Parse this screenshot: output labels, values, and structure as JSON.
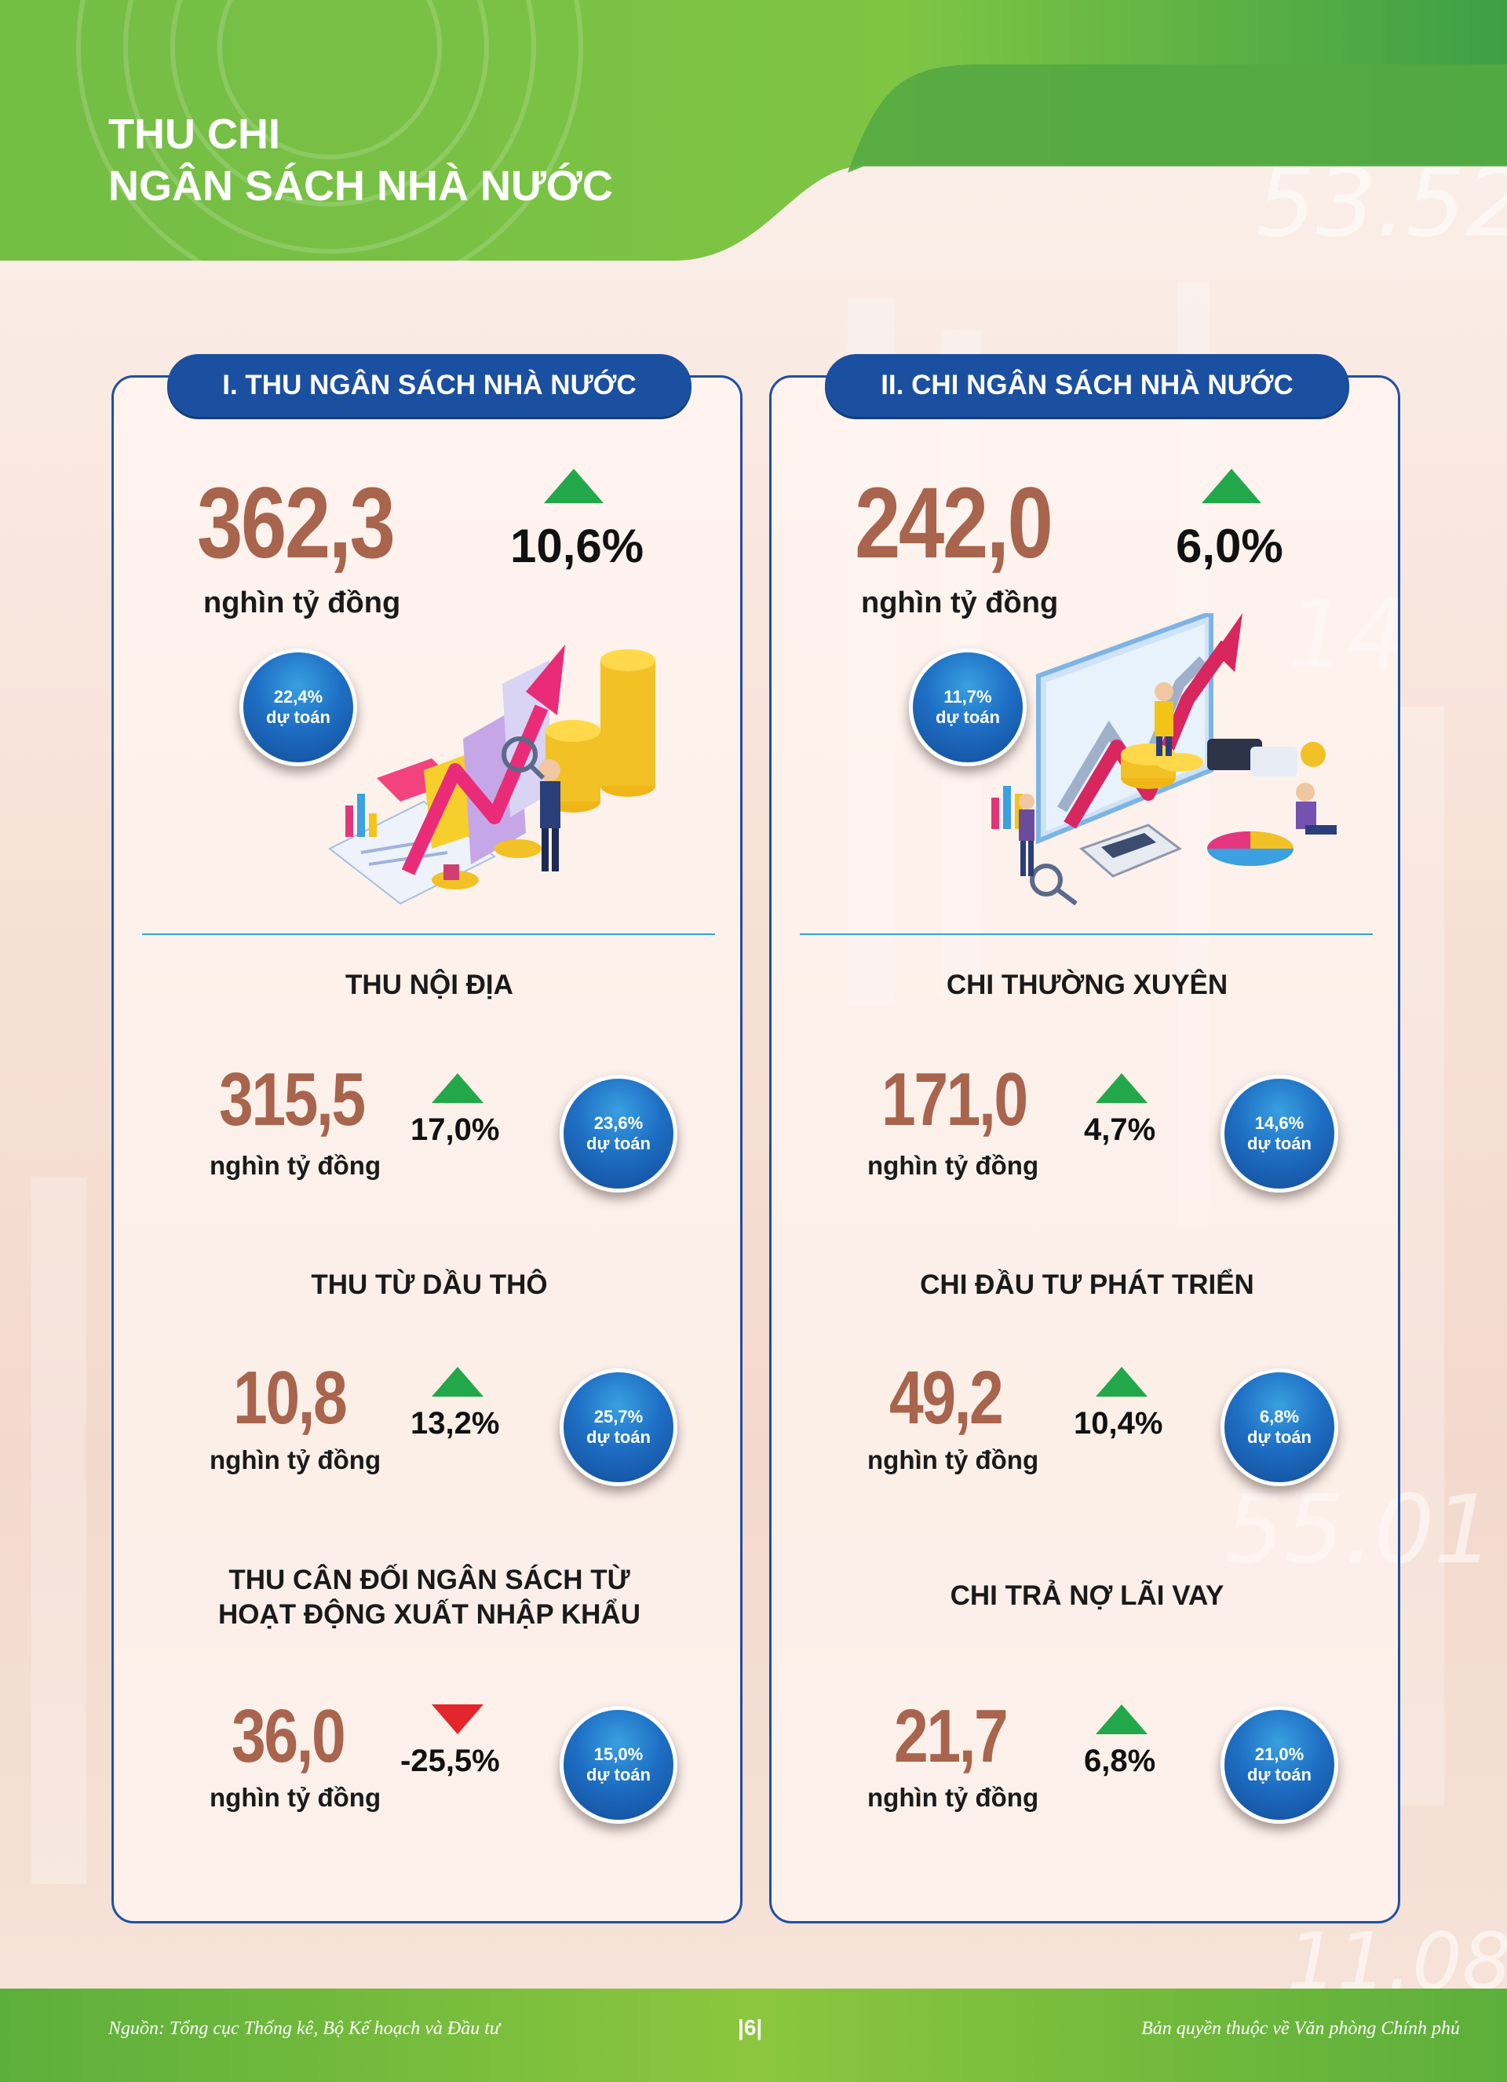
{
  "title": {
    "line1": "THU CHI",
    "line2": "NGÂN SÁCH NHÀ NƯỚC"
  },
  "background_numbers": [
    "53.52",
    "14",
    "55.01",
    "11.08"
  ],
  "revenue": {
    "heading": "I. THU NGÂN SÁCH NHÀ NƯỚC",
    "total": {
      "value": "362,3",
      "unit": "nghìn tỷ đồng",
      "change": "10,6%",
      "trend": "up",
      "estimate_pct": "22,4%",
      "estimate_label": "dự toán"
    },
    "items": [
      {
        "title": "THU NỘI ĐỊA",
        "value": "315,5",
        "unit": "nghìn tỷ đồng",
        "change": "17,0%",
        "trend": "up",
        "estimate_pct": "23,6%",
        "estimate_label": "dự toán"
      },
      {
        "title": "THU TỪ DẦU THÔ",
        "value": "10,8",
        "unit": "nghìn tỷ đồng",
        "change": "13,2%",
        "trend": "up",
        "estimate_pct": "25,7%",
        "estimate_label": "dự toán"
      },
      {
        "title_line1": "THU CÂN ĐỐI NGÂN SÁCH TỪ",
        "title_line2": "HOẠT ĐỘNG XUẤT NHẬP KHẨU",
        "value": "36,0",
        "unit": "nghìn tỷ đồng",
        "change": "-25,5%",
        "trend": "down",
        "estimate_pct": "15,0%",
        "estimate_label": "dự toán"
      }
    ]
  },
  "expenditure": {
    "heading": "II. CHI NGÂN SÁCH NHÀ NƯỚC",
    "total": {
      "value": "242,0",
      "unit": "nghìn tỷ đồng",
      "change": "6,0%",
      "trend": "up",
      "estimate_pct": "11,7%",
      "estimate_label": "dự toán"
    },
    "items": [
      {
        "title": "CHI THƯỜNG XUYÊN",
        "value": "171,0",
        "unit": "nghìn tỷ đồng",
        "change": "4,7%",
        "trend": "up",
        "estimate_pct": "14,6%",
        "estimate_label": "dự toán"
      },
      {
        "title": "CHI ĐẦU TƯ PHÁT TRIỂN",
        "value": "49,2",
        "unit": "nghìn tỷ đồng",
        "change": "10,4%",
        "trend": "up",
        "estimate_pct": "6,8%",
        "estimate_label": "dự toán"
      },
      {
        "title": "CHI TRẢ NỢ LÃI VAY",
        "value": "21,7",
        "unit": "nghìn tỷ đồng",
        "change": "6,8%",
        "trend": "up",
        "estimate_pct": "21,0%",
        "estimate_label": "dự toán"
      }
    ]
  },
  "footer": {
    "source": "Nguồn: Tổng cục Thống kê, Bộ Kế hoạch và Đầu tư",
    "page": "|6|",
    "copyright": "Bản quyền thuộc về Văn phòng Chính phủ"
  },
  "colors": {
    "green": "#6ab63f",
    "navy": "#1b4fa0",
    "value_brown": "#a8644c",
    "up_green": "#22a84a",
    "down_red": "#e3262b"
  },
  "icons": [
    "trend-arrow-icon",
    "coins-icon",
    "magnifier-icon",
    "analyst-icon",
    "calculator-icon",
    "pie-chart-icon"
  ]
}
